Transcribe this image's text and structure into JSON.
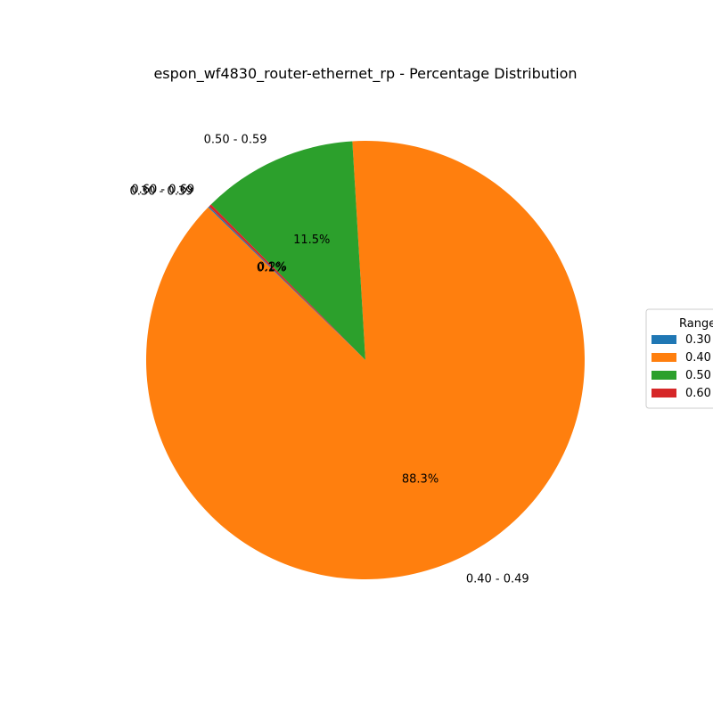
{
  "chart_data": {
    "type": "pie",
    "title": "espon_wf4830_router-ethernet_rp - Percentage Distribution",
    "slices": [
      {
        "label": "0.30 - 0.39",
        "value": 0.1,
        "pct_label": "0.1%",
        "color": "#1f77b4",
        "legend_text": "0.30"
      },
      {
        "label": "0.40 - 0.49",
        "value": 88.3,
        "pct_label": "88.3%",
        "color": "#ff7f0e",
        "legend_text": "0.40"
      },
      {
        "label": "0.50 - 0.59",
        "value": 11.5,
        "pct_label": "11.5%",
        "color": "#2ca02c",
        "legend_text": "0.50"
      },
      {
        "label": "0.60 - 0.69",
        "value": 0.2,
        "pct_label": "0.2%",
        "color": "#d62728",
        "legend_text": "0.60"
      }
    ],
    "legend": {
      "title": "Range",
      "placement": "right"
    }
  }
}
